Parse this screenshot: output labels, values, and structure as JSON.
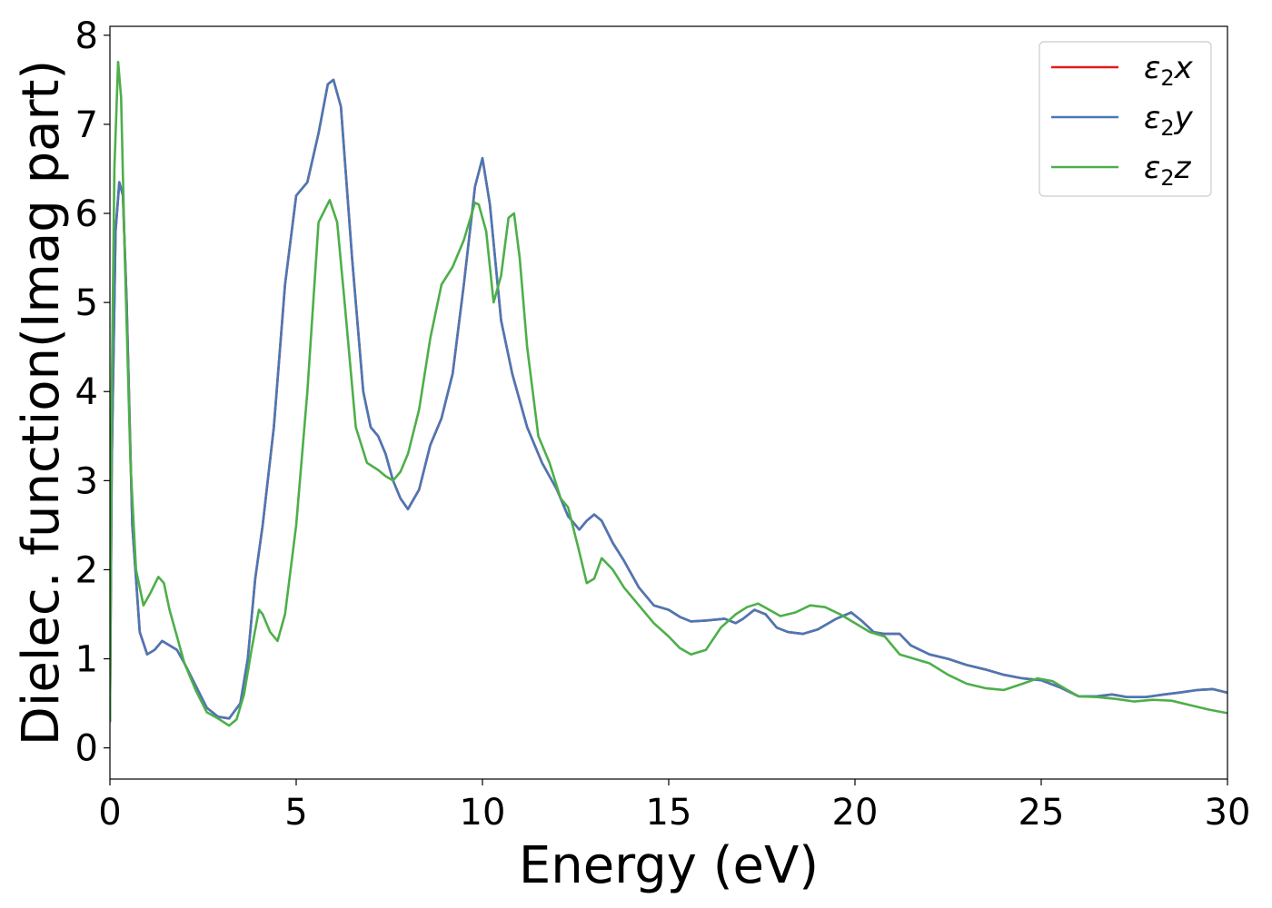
{
  "chart_data": {
    "type": "line",
    "title": "",
    "xlabel": "Energy (eV)",
    "ylabel": "Dielec. function(Imag part)",
    "xlim": [
      0,
      30
    ],
    "ylim": [
      -0.35,
      8.1
    ],
    "xticks": [
      0,
      5,
      10,
      15,
      20,
      25,
      30
    ],
    "yticks": [
      0,
      1,
      2,
      3,
      4,
      5,
      6,
      7,
      8
    ],
    "grid": false,
    "legend_position": "top-right",
    "series": [
      {
        "name": "ε₂x",
        "legend_main": "ε",
        "legend_sub": "2",
        "legend_var": "x",
        "color": "#e41a1c",
        "x": [
          0,
          0.05,
          0.15,
          0.25,
          0.35,
          0.45,
          0.6,
          0.8,
          1.0,
          1.2,
          1.4,
          1.6,
          1.8,
          2.0,
          2.3,
          2.6,
          2.9,
          3.2,
          3.5,
          3.7,
          3.9,
          4.1,
          4.4,
          4.7,
          5.0,
          5.3,
          5.6,
          5.85,
          6.0,
          6.2,
          6.5,
          6.8,
          7.0,
          7.2,
          7.4,
          7.6,
          7.8,
          8.0,
          8.3,
          8.6,
          8.9,
          9.2,
          9.5,
          9.8,
          10.0,
          10.2,
          10.5,
          10.8,
          11.2,
          11.6,
          12.0,
          12.3,
          12.6,
          12.8,
          13.0,
          13.2,
          13.5,
          13.8,
          14.2,
          14.6,
          15.0,
          15.3,
          15.6,
          16.0,
          16.5,
          16.8,
          17.0,
          17.3,
          17.6,
          17.9,
          18.2,
          18.6,
          19.0,
          19.5,
          19.9,
          20.2,
          20.5,
          20.8,
          21.2,
          21.5,
          22.0,
          22.5,
          23.0,
          23.5,
          24.0,
          24.5,
          25.0,
          25.5,
          26.0,
          26.5,
          26.9,
          27.3,
          27.8,
          28.3,
          28.7,
          29.2,
          29.6,
          30.0
        ],
        "y": [
          0.3,
          3.2,
          5.8,
          6.35,
          6.2,
          5.0,
          2.5,
          1.3,
          1.05,
          1.1,
          1.2,
          1.15,
          1.1,
          0.95,
          0.7,
          0.45,
          0.35,
          0.33,
          0.5,
          1.0,
          1.9,
          2.5,
          3.6,
          5.2,
          6.2,
          6.35,
          6.9,
          7.45,
          7.5,
          7.2,
          5.5,
          4.0,
          3.6,
          3.5,
          3.3,
          3.0,
          2.8,
          2.68,
          2.9,
          3.4,
          3.7,
          4.2,
          5.2,
          6.3,
          6.62,
          6.1,
          4.8,
          4.2,
          3.6,
          3.2,
          2.9,
          2.6,
          2.45,
          2.55,
          2.62,
          2.55,
          2.3,
          2.1,
          1.8,
          1.6,
          1.55,
          1.47,
          1.42,
          1.43,
          1.45,
          1.4,
          1.45,
          1.55,
          1.5,
          1.35,
          1.3,
          1.28,
          1.33,
          1.45,
          1.52,
          1.42,
          1.3,
          1.28,
          1.28,
          1.15,
          1.05,
          1.0,
          0.93,
          0.88,
          0.82,
          0.78,
          0.76,
          0.68,
          0.58,
          0.58,
          0.6,
          0.57,
          0.57,
          0.6,
          0.62,
          0.65,
          0.66,
          0.62
        ]
      },
      {
        "name": "ε₂y",
        "legend_main": "ε",
        "legend_sub": "2",
        "legend_var": "y",
        "color": "#4a78b5",
        "x": [
          0,
          0.05,
          0.15,
          0.25,
          0.35,
          0.45,
          0.6,
          0.8,
          1.0,
          1.2,
          1.4,
          1.6,
          1.8,
          2.0,
          2.3,
          2.6,
          2.9,
          3.2,
          3.5,
          3.7,
          3.9,
          4.1,
          4.4,
          4.7,
          5.0,
          5.3,
          5.6,
          5.85,
          6.0,
          6.2,
          6.5,
          6.8,
          7.0,
          7.2,
          7.4,
          7.6,
          7.8,
          8.0,
          8.3,
          8.6,
          8.9,
          9.2,
          9.5,
          9.8,
          10.0,
          10.2,
          10.5,
          10.8,
          11.2,
          11.6,
          12.0,
          12.3,
          12.6,
          12.8,
          13.0,
          13.2,
          13.5,
          13.8,
          14.2,
          14.6,
          15.0,
          15.3,
          15.6,
          16.0,
          16.5,
          16.8,
          17.0,
          17.3,
          17.6,
          17.9,
          18.2,
          18.6,
          19.0,
          19.5,
          19.9,
          20.2,
          20.5,
          20.8,
          21.2,
          21.5,
          22.0,
          22.5,
          23.0,
          23.5,
          24.0,
          24.5,
          25.0,
          25.5,
          26.0,
          26.5,
          26.9,
          27.3,
          27.8,
          28.3,
          28.7,
          29.2,
          29.6,
          30.0
        ],
        "y": [
          0.3,
          3.2,
          5.8,
          6.35,
          6.2,
          5.0,
          2.5,
          1.3,
          1.05,
          1.1,
          1.2,
          1.15,
          1.1,
          0.95,
          0.7,
          0.45,
          0.35,
          0.33,
          0.5,
          1.0,
          1.9,
          2.5,
          3.6,
          5.2,
          6.2,
          6.35,
          6.9,
          7.45,
          7.5,
          7.2,
          5.5,
          4.0,
          3.6,
          3.5,
          3.3,
          3.0,
          2.8,
          2.68,
          2.9,
          3.4,
          3.7,
          4.2,
          5.2,
          6.3,
          6.62,
          6.1,
          4.8,
          4.2,
          3.6,
          3.2,
          2.9,
          2.6,
          2.45,
          2.55,
          2.62,
          2.55,
          2.3,
          2.1,
          1.8,
          1.6,
          1.55,
          1.47,
          1.42,
          1.43,
          1.45,
          1.4,
          1.45,
          1.55,
          1.5,
          1.35,
          1.3,
          1.28,
          1.33,
          1.45,
          1.52,
          1.42,
          1.3,
          1.28,
          1.28,
          1.15,
          1.05,
          1.0,
          0.93,
          0.88,
          0.82,
          0.78,
          0.76,
          0.68,
          0.58,
          0.58,
          0.6,
          0.57,
          0.57,
          0.6,
          0.62,
          0.65,
          0.66,
          0.62
        ]
      },
      {
        "name": "ε₂z",
        "legend_main": "ε",
        "legend_sub": "2",
        "legend_var": "z",
        "color": "#4daf4a",
        "x": [
          0,
          0.05,
          0.12,
          0.22,
          0.3,
          0.4,
          0.55,
          0.7,
          0.9,
          1.1,
          1.3,
          1.45,
          1.6,
          1.8,
          2.0,
          2.3,
          2.6,
          2.9,
          3.2,
          3.4,
          3.6,
          3.8,
          4.0,
          4.1,
          4.3,
          4.5,
          4.7,
          5.0,
          5.3,
          5.6,
          5.9,
          6.1,
          6.3,
          6.6,
          6.9,
          7.2,
          7.4,
          7.6,
          7.8,
          8.0,
          8.3,
          8.6,
          8.9,
          9.2,
          9.5,
          9.8,
          9.9,
          10.1,
          10.3,
          10.5,
          10.7,
          10.85,
          11.0,
          11.2,
          11.5,
          11.8,
          12.1,
          12.3,
          12.6,
          12.8,
          13.0,
          13.2,
          13.5,
          13.8,
          14.2,
          14.6,
          15.0,
          15.3,
          15.6,
          16.0,
          16.4,
          16.8,
          17.1,
          17.4,
          17.7,
          18.0,
          18.4,
          18.8,
          19.2,
          19.6,
          20.0,
          20.4,
          20.8,
          21.2,
          21.6,
          22.0,
          22.5,
          23.0,
          23.5,
          24.0,
          24.5,
          24.9,
          25.3,
          25.7,
          26.0,
          26.5,
          27.0,
          27.5,
          28.0,
          28.5,
          29.0,
          29.5,
          30.0
        ],
        "y": [
          0.3,
          4.0,
          6.5,
          7.7,
          7.3,
          5.5,
          3.2,
          2.0,
          1.6,
          1.75,
          1.92,
          1.85,
          1.55,
          1.25,
          0.95,
          0.65,
          0.4,
          0.33,
          0.25,
          0.32,
          0.6,
          1.1,
          1.55,
          1.5,
          1.3,
          1.2,
          1.5,
          2.5,
          4.0,
          5.9,
          6.15,
          5.9,
          5.0,
          3.6,
          3.2,
          3.12,
          3.05,
          3.0,
          3.1,
          3.3,
          3.8,
          4.6,
          5.2,
          5.4,
          5.7,
          6.12,
          6.1,
          5.8,
          5.0,
          5.3,
          5.95,
          6.0,
          5.5,
          4.5,
          3.5,
          3.2,
          2.8,
          2.7,
          2.2,
          1.85,
          1.9,
          2.13,
          2.0,
          1.8,
          1.6,
          1.4,
          1.25,
          1.12,
          1.05,
          1.1,
          1.35,
          1.5,
          1.58,
          1.62,
          1.55,
          1.48,
          1.52,
          1.6,
          1.58,
          1.5,
          1.4,
          1.3,
          1.25,
          1.05,
          1.0,
          0.95,
          0.82,
          0.72,
          0.67,
          0.65,
          0.72,
          0.78,
          0.75,
          0.65,
          0.58,
          0.57,
          0.55,
          0.52,
          0.54,
          0.53,
          0.48,
          0.43,
          0.39
        ]
      }
    ]
  }
}
